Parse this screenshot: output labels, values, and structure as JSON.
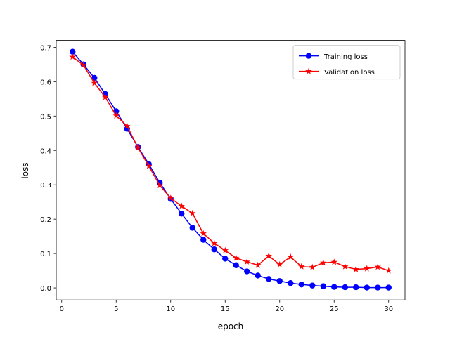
{
  "chart_data": {
    "type": "line",
    "xlabel": "epoch",
    "ylabel": "loss",
    "xlim": [
      -0.5,
      31.5
    ],
    "ylim": [
      -0.035,
      0.72
    ],
    "xticks": [
      0,
      5,
      10,
      15,
      20,
      25,
      30
    ],
    "yticks": [
      0.0,
      0.1,
      0.2,
      0.3,
      0.4,
      0.5,
      0.6,
      0.7
    ],
    "x": [
      1,
      2,
      3,
      4,
      5,
      6,
      7,
      8,
      9,
      10,
      11,
      12,
      13,
      14,
      15,
      16,
      17,
      18,
      19,
      20,
      21,
      22,
      23,
      24,
      25,
      26,
      27,
      28,
      29,
      30
    ],
    "series": [
      {
        "name": "Training loss",
        "color": "#0000ff",
        "marker": "circle",
        "values": [
          0.687,
          0.65,
          0.611,
          0.564,
          0.514,
          0.463,
          0.41,
          0.36,
          0.306,
          0.259,
          0.216,
          0.175,
          0.14,
          0.112,
          0.085,
          0.066,
          0.048,
          0.036,
          0.026,
          0.02,
          0.014,
          0.01,
          0.007,
          0.005,
          0.003,
          0.002,
          0.002,
          0.001,
          0.001,
          0.001
        ]
      },
      {
        "name": "Validation loss",
        "color": "#ff0000",
        "marker": "star",
        "values": [
          0.672,
          0.648,
          0.596,
          0.555,
          0.501,
          0.471,
          0.408,
          0.354,
          0.298,
          0.261,
          0.238,
          0.217,
          0.158,
          0.13,
          0.109,
          0.087,
          0.076,
          0.066,
          0.093,
          0.068,
          0.09,
          0.062,
          0.06,
          0.073,
          0.075,
          0.062,
          0.054,
          0.056,
          0.061,
          0.05
        ]
      }
    ],
    "legend": "top-right",
    "grid": false
  }
}
